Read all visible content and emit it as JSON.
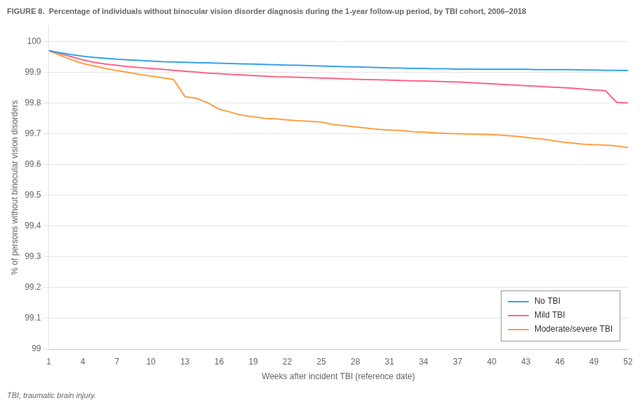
{
  "chart_data": {
    "type": "line",
    "title": "FIGURE 8.  Percentage of individuals without binocular vision disorder diagnosis during the 1-year follow-up period, by TBI cohort, 2006–2018",
    "x_label": "Weeks after incident TBI (reference date)",
    "y_label": "% of persons without binocular vision disorders",
    "annotations": [
      "TBI, traumatic brain injury."
    ],
    "x": [
      1,
      2,
      3,
      4,
      5,
      6,
      7,
      8,
      9,
      10,
      11,
      12,
      13,
      14,
      15,
      16,
      17,
      18,
      19,
      20,
      21,
      22,
      23,
      24,
      25,
      26,
      27,
      28,
      29,
      30,
      31,
      32,
      33,
      34,
      35,
      36,
      37,
      38,
      39,
      40,
      41,
      42,
      43,
      44,
      45,
      46,
      47,
      48,
      49,
      50,
      51,
      52
    ],
    "series": [
      {
        "name": "No TBI",
        "values": [
          99.97,
          99.963,
          99.957,
          99.952,
          99.948,
          99.945,
          99.942,
          99.94,
          99.938,
          99.936,
          99.934,
          99.933,
          99.932,
          99.931,
          99.93,
          99.929,
          99.928,
          99.927,
          99.926,
          99.925,
          99.924,
          99.923,
          99.922,
          99.921,
          99.92,
          99.919,
          99.918,
          99.917,
          99.916,
          99.915,
          99.914,
          99.913,
          99.912,
          99.912,
          99.911,
          99.911,
          99.91,
          99.91,
          99.909,
          99.909,
          99.909,
          99.909,
          99.909,
          99.908,
          99.908,
          99.908,
          99.908,
          99.907,
          99.907,
          99.906,
          99.906,
          99.905
        ]
      },
      {
        "name": "Mild TBI",
        "values": [
          99.97,
          99.96,
          99.95,
          99.94,
          99.932,
          99.926,
          99.922,
          99.918,
          99.915,
          99.912,
          99.909,
          99.906,
          99.903,
          99.9,
          99.897,
          99.895,
          99.893,
          99.891,
          99.889,
          99.887,
          99.885,
          99.884,
          99.883,
          99.882,
          99.881,
          99.88,
          99.878,
          99.877,
          99.876,
          99.875,
          99.874,
          99.873,
          99.872,
          99.871,
          99.87,
          99.869,
          99.868,
          99.866,
          99.864,
          99.862,
          99.86,
          99.858,
          99.856,
          99.854,
          99.852,
          99.85,
          99.848,
          99.845,
          99.842,
          99.84,
          99.802,
          99.8
        ]
      },
      {
        "name": "Moderate/severe TBI",
        "values": [
          99.97,
          99.955,
          99.94,
          99.928,
          99.92,
          99.912,
          99.905,
          99.899,
          99.893,
          99.887,
          99.882,
          99.876,
          99.82,
          99.815,
          99.8,
          99.78,
          99.77,
          99.76,
          99.755,
          99.75,
          99.748,
          99.745,
          99.742,
          99.74,
          99.738,
          99.73,
          99.726,
          99.722,
          99.718,
          99.714,
          99.712,
          99.71,
          99.707,
          99.705,
          99.703,
          99.701,
          99.7,
          99.699,
          99.698,
          99.697,
          99.695,
          99.692,
          99.688,
          99.684,
          99.68,
          99.674,
          99.67,
          99.666,
          99.664,
          99.663,
          99.66,
          99.655
        ]
      }
    ],
    "xlim": [
      1,
      52
    ],
    "xticks": [
      1,
      4,
      7,
      10,
      13,
      16,
      19,
      22,
      25,
      28,
      31,
      34,
      37,
      40,
      43,
      46,
      49,
      52
    ],
    "ylim": [
      99.0,
      100.05
    ],
    "yticks": [
      99,
      99.1,
      99.2,
      99.3,
      99.4,
      99.5,
      99.6,
      99.7,
      99.8,
      99.9,
      100
    ],
    "grid": "y",
    "legend": "lower right"
  }
}
